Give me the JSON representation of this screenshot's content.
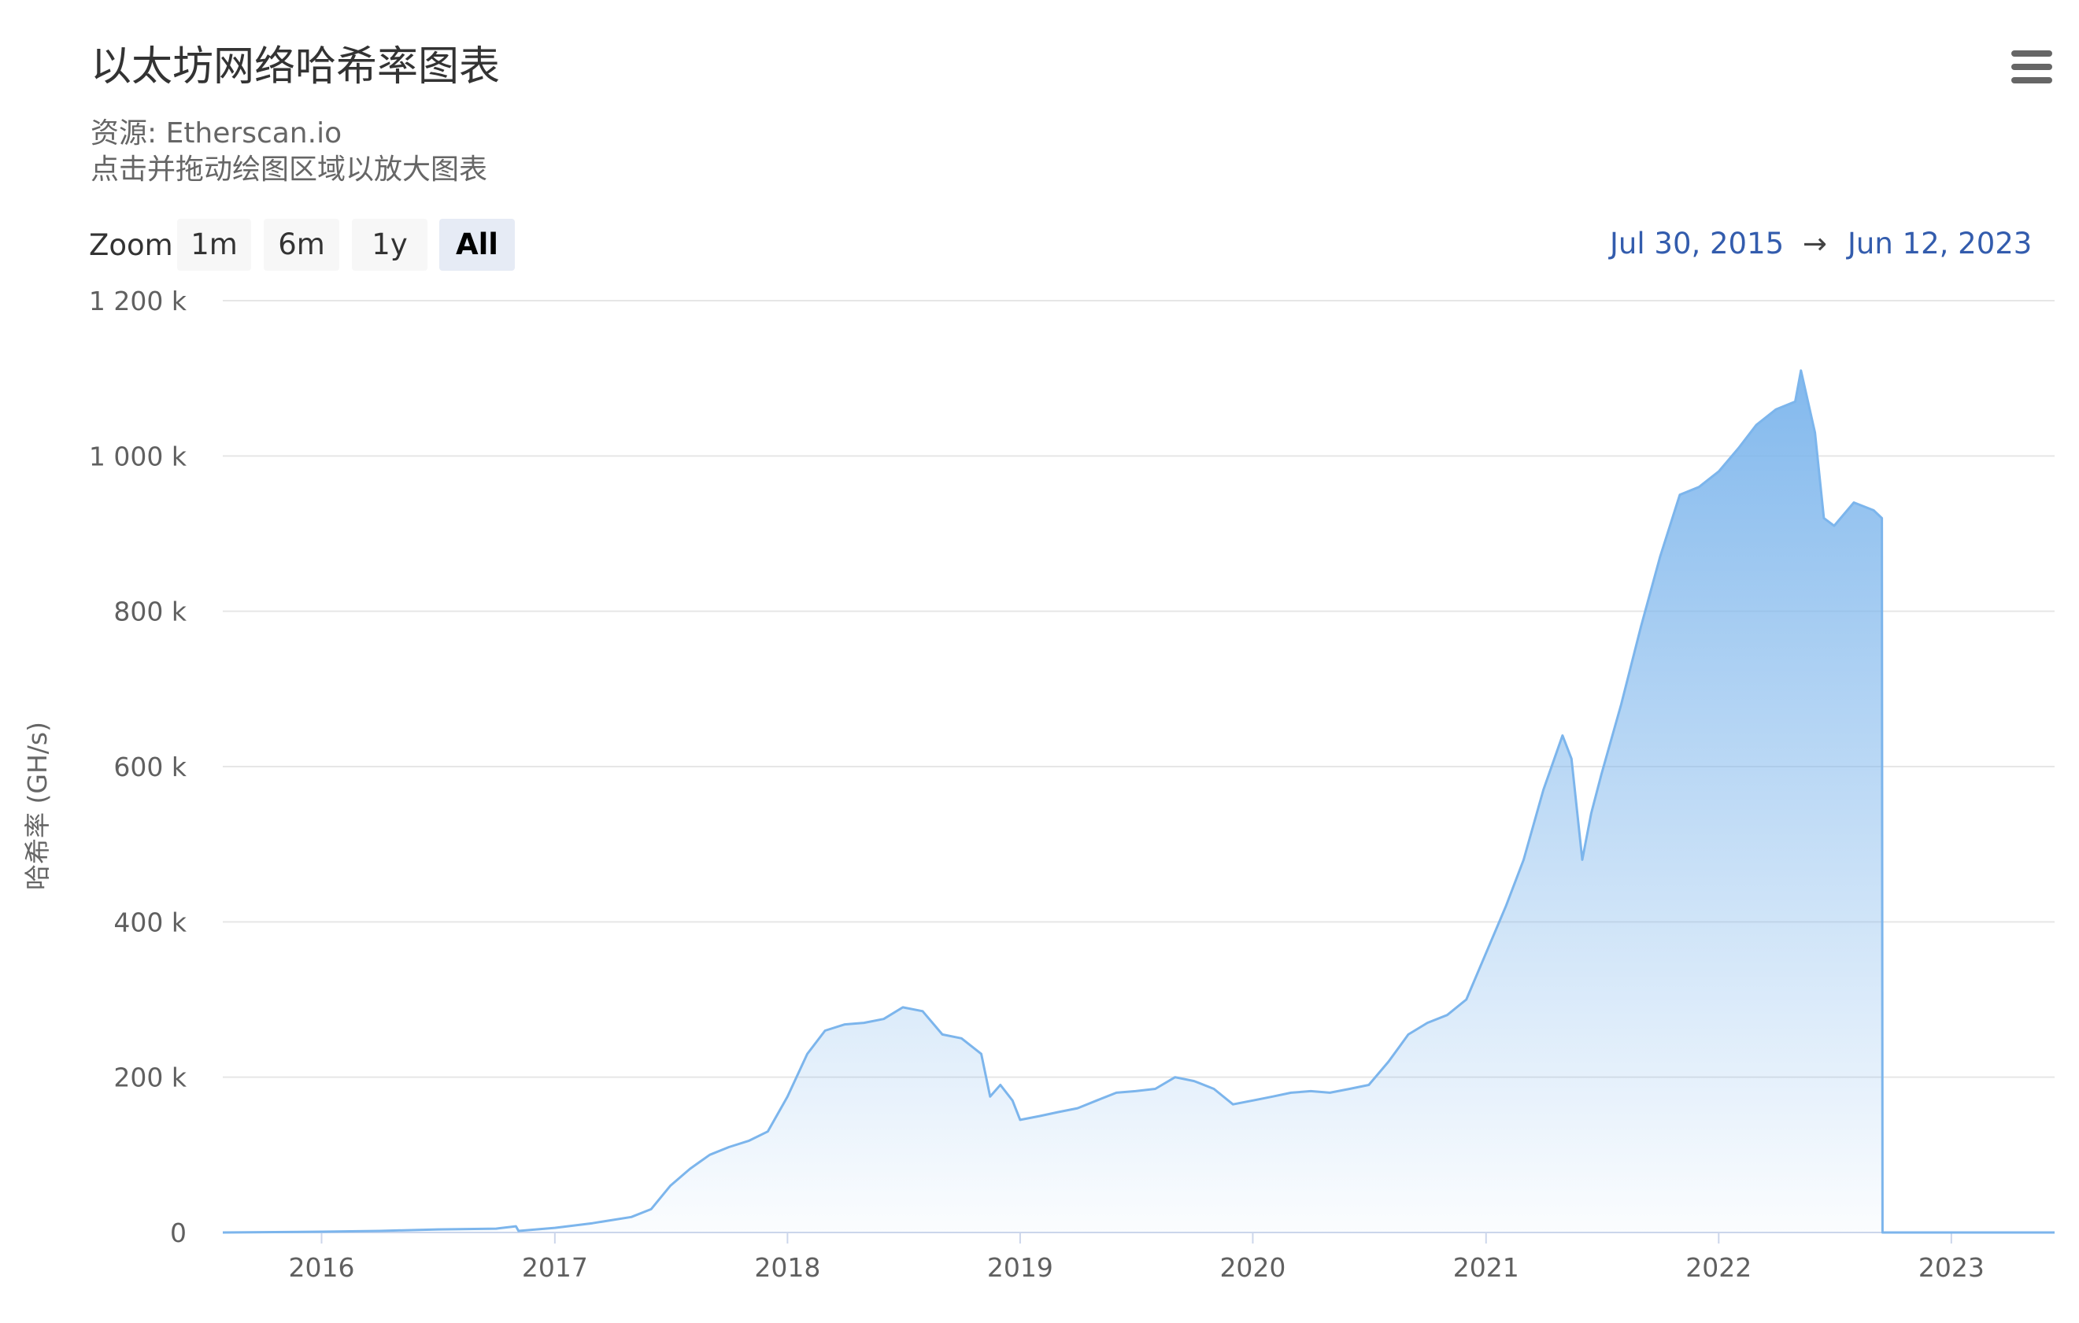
{
  "title": "以太坊网络哈希率图表",
  "subtitle_source": "资源: Etherscan.io",
  "subtitle_hint": "点击并拖动绘图区域以放大图表",
  "menu_icon": "hamburger-menu-icon",
  "zoom": {
    "label": "Zoom",
    "buttons": [
      "1m",
      "6m",
      "1y",
      "All"
    ],
    "selected": "All"
  },
  "range": {
    "from": "Jul 30, 2015",
    "arrow": "→",
    "to": "Jun 12, 2023"
  },
  "colors": {
    "line": "#7cb5ec",
    "grid": "#e6e6e6",
    "range_text": "#335cad"
  },
  "chart_data": {
    "type": "area",
    "ylabel": "哈希率 (GH/s)",
    "xlabel": "",
    "ylim": [
      0,
      1200000
    ],
    "yticks": [
      0,
      200000,
      400000,
      600000,
      800000,
      1000000,
      1200000
    ],
    "ytick_labels": [
      "0",
      "200 k",
      "400 k",
      "600 k",
      "800 k",
      "1 000 k",
      "1 200 k"
    ],
    "xlim": [
      "2015-07-30",
      "2023-06-12"
    ],
    "xtick_labels": [
      "2016",
      "2017",
      "2018",
      "2019",
      "2020",
      "2021",
      "2022",
      "2023"
    ],
    "grid": true,
    "legend": false,
    "series": [
      {
        "x": [
          "2015-07-30",
          "2016-01-01",
          "2016-04-01",
          "2016-07-01",
          "2016-10-01",
          "2016-11-01",
          "2016-11-05",
          "2017-01-01",
          "2017-03-01",
          "2017-05-01",
          "2017-06-01",
          "2017-07-01",
          "2017-08-01",
          "2017-09-01",
          "2017-10-01",
          "2017-11-01",
          "2017-12-01",
          "2018-01-01",
          "2018-02-01",
          "2018-03-01",
          "2018-04-01",
          "2018-05-01",
          "2018-06-01",
          "2018-07-01",
          "2018-08-01",
          "2018-09-01",
          "2018-10-01",
          "2018-11-01",
          "2018-11-15",
          "2018-12-01",
          "2018-12-20",
          "2019-01-01",
          "2019-02-01",
          "2019-03-01",
          "2019-04-01",
          "2019-05-01",
          "2019-06-01",
          "2019-07-01",
          "2019-08-01",
          "2019-09-01",
          "2019-10-01",
          "2019-11-01",
          "2019-12-01",
          "2020-01-01",
          "2020-02-01",
          "2020-03-01",
          "2020-04-01",
          "2020-05-01",
          "2020-06-01",
          "2020-07-01",
          "2020-08-01",
          "2020-09-01",
          "2020-10-01",
          "2020-11-01",
          "2020-12-01",
          "2021-01-01",
          "2021-02-01",
          "2021-03-01",
          "2021-04-01",
          "2021-05-01",
          "2021-05-15",
          "2021-06-01",
          "2021-06-15",
          "2021-07-01",
          "2021-08-01",
          "2021-09-01",
          "2021-10-01",
          "2021-11-01",
          "2021-12-01",
          "2022-01-01",
          "2022-02-01",
          "2022-03-01",
          "2022-04-01",
          "2022-05-01",
          "2022-05-10",
          "2022-06-01",
          "2022-06-15",
          "2022-07-01",
          "2022-08-01",
          "2022-09-01",
          "2022-09-14",
          "2022-09-15",
          "2022-10-01",
          "2023-01-01",
          "2023-06-12"
        ],
        "values": [
          0,
          1000,
          2000,
          4000,
          5000,
          8000,
          2000,
          6000,
          12000,
          20000,
          30000,
          60000,
          82000,
          100000,
          110000,
          118000,
          130000,
          175000,
          230000,
          260000,
          268000,
          270000,
          275000,
          290000,
          285000,
          255000,
          250000,
          230000,
          175000,
          190000,
          170000,
          145000,
          150000,
          155000,
          160000,
          170000,
          180000,
          182000,
          185000,
          200000,
          195000,
          185000,
          165000,
          170000,
          175000,
          180000,
          182000,
          180000,
          185000,
          190000,
          220000,
          255000,
          270000,
          280000,
          300000,
          360000,
          420000,
          480000,
          570000,
          640000,
          610000,
          480000,
          540000,
          590000,
          680000,
          780000,
          870000,
          950000,
          960000,
          980000,
          1010000,
          1040000,
          1060000,
          1070000,
          1110000,
          1030000,
          920000,
          910000,
          940000,
          930000,
          920000,
          0,
          0,
          0,
          0
        ]
      }
    ]
  }
}
